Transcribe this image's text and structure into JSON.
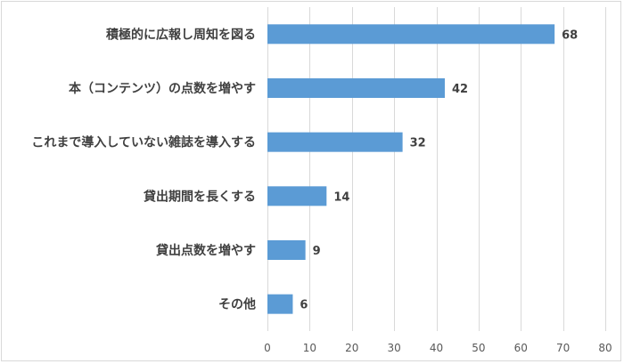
{
  "chart_data": {
    "type": "bar",
    "orientation": "horizontal",
    "categories": [
      "積極的に広報し周知を図る",
      "本（コンテンツ）の点数を増やす",
      "これまで導入していない雑誌を導入する",
      "貸出期間を長くする",
      "貸出点数を増やす",
      "その他"
    ],
    "values": [
      68,
      42,
      32,
      14,
      9,
      6
    ],
    "xlim": [
      0,
      80
    ],
    "xticks": [
      "0",
      "10",
      "20",
      "30",
      "40",
      "50",
      "60",
      "70",
      "80"
    ],
    "data_labels": [
      "68",
      "42",
      "32",
      "14",
      "9",
      "6"
    ],
    "grid": true,
    "bar_color": "#5b9bd5",
    "title": "",
    "xlabel": "",
    "ylabel": ""
  }
}
